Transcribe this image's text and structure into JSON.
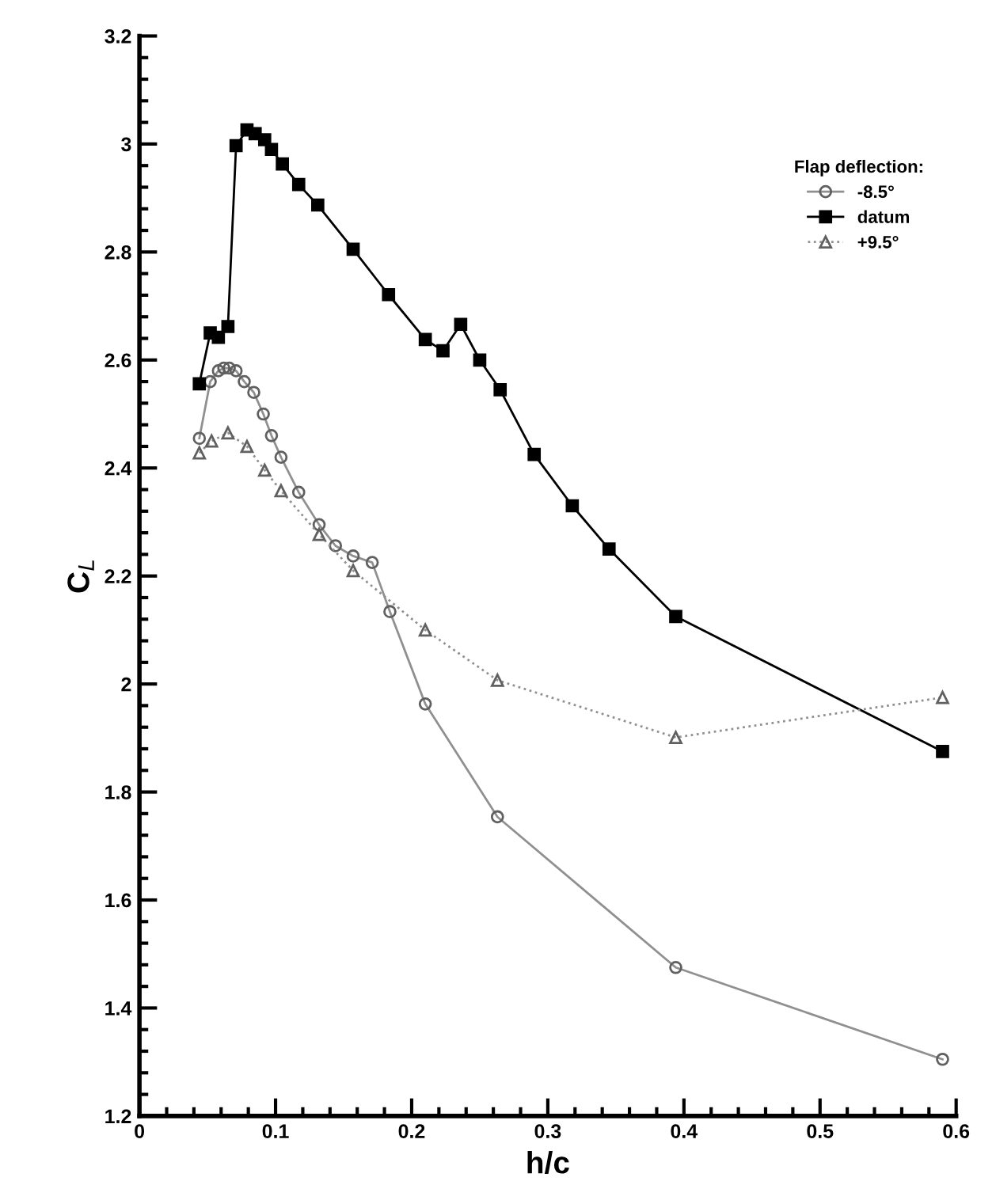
{
  "chart_data": {
    "type": "line",
    "xlabel": "h/c",
    "ylabel": "C$_{L}$",
    "legend_title": "Flap deflection:",
    "legend": "top right",
    "grid": false,
    "xlim": [
      0,
      0.6
    ],
    "xticks": [
      0,
      0.1,
      0.2,
      0.3,
      0.4,
      0.5,
      0.6
    ],
    "ylim": [
      1.2,
      3.2
    ],
    "yticks": [
      1.2,
      1.4,
      1.6,
      1.8,
      2,
      2.2,
      2.4,
      2.6,
      2.8,
      3,
      3.2
    ],
    "series": [
      {
        "name": "-8.5°",
        "color": "#808080",
        "marker": "circle",
        "line_style": "solid",
        "x": [
          0.044,
          0.052,
          0.058,
          0.062,
          0.066,
          0.071,
          0.077,
          0.084,
          0.091,
          0.097,
          0.104,
          0.117,
          0.132,
          0.144,
          0.157,
          0.171,
          0.184,
          0.21,
          0.263,
          0.394,
          0.59
        ],
        "values": [
          2.455,
          2.56,
          2.58,
          2.585,
          2.585,
          2.58,
          2.56,
          2.54,
          2.5,
          2.46,
          2.42,
          2.355,
          2.295,
          2.256,
          2.237,
          2.225,
          2.134,
          1.963,
          1.754,
          1.475,
          1.305
        ]
      },
      {
        "name": "datum",
        "color": "#000000",
        "marker": "square",
        "line_style": "solid",
        "x": [
          0.044,
          0.052,
          0.058,
          0.065,
          0.071,
          0.079,
          0.085,
          0.092,
          0.097,
          0.105,
          0.117,
          0.131,
          0.157,
          0.183,
          0.21,
          0.223,
          0.236,
          0.25,
          0.265,
          0.29,
          0.318,
          0.345,
          0.394,
          0.59
        ],
        "values": [
          2.556,
          2.65,
          2.642,
          2.662,
          2.997,
          3.026,
          3.019,
          3.008,
          2.99,
          2.963,
          2.925,
          2.887,
          2.805,
          2.721,
          2.638,
          2.617,
          2.666,
          2.6,
          2.545,
          2.425,
          2.33,
          2.25,
          2.125,
          1.875
        ]
      },
      {
        "name": "+9.5°",
        "color": "#a0a0a0",
        "marker": "triangle",
        "line_style": "dotted",
        "x": [
          0.044,
          0.053,
          0.065,
          0.079,
          0.092,
          0.104,
          0.132,
          0.157,
          0.21,
          0.263,
          0.394,
          0.59
        ],
        "values": [
          2.428,
          2.45,
          2.465,
          2.44,
          2.396,
          2.358,
          2.277,
          2.21,
          2.1,
          2.007,
          1.901,
          1.975
        ]
      }
    ]
  }
}
